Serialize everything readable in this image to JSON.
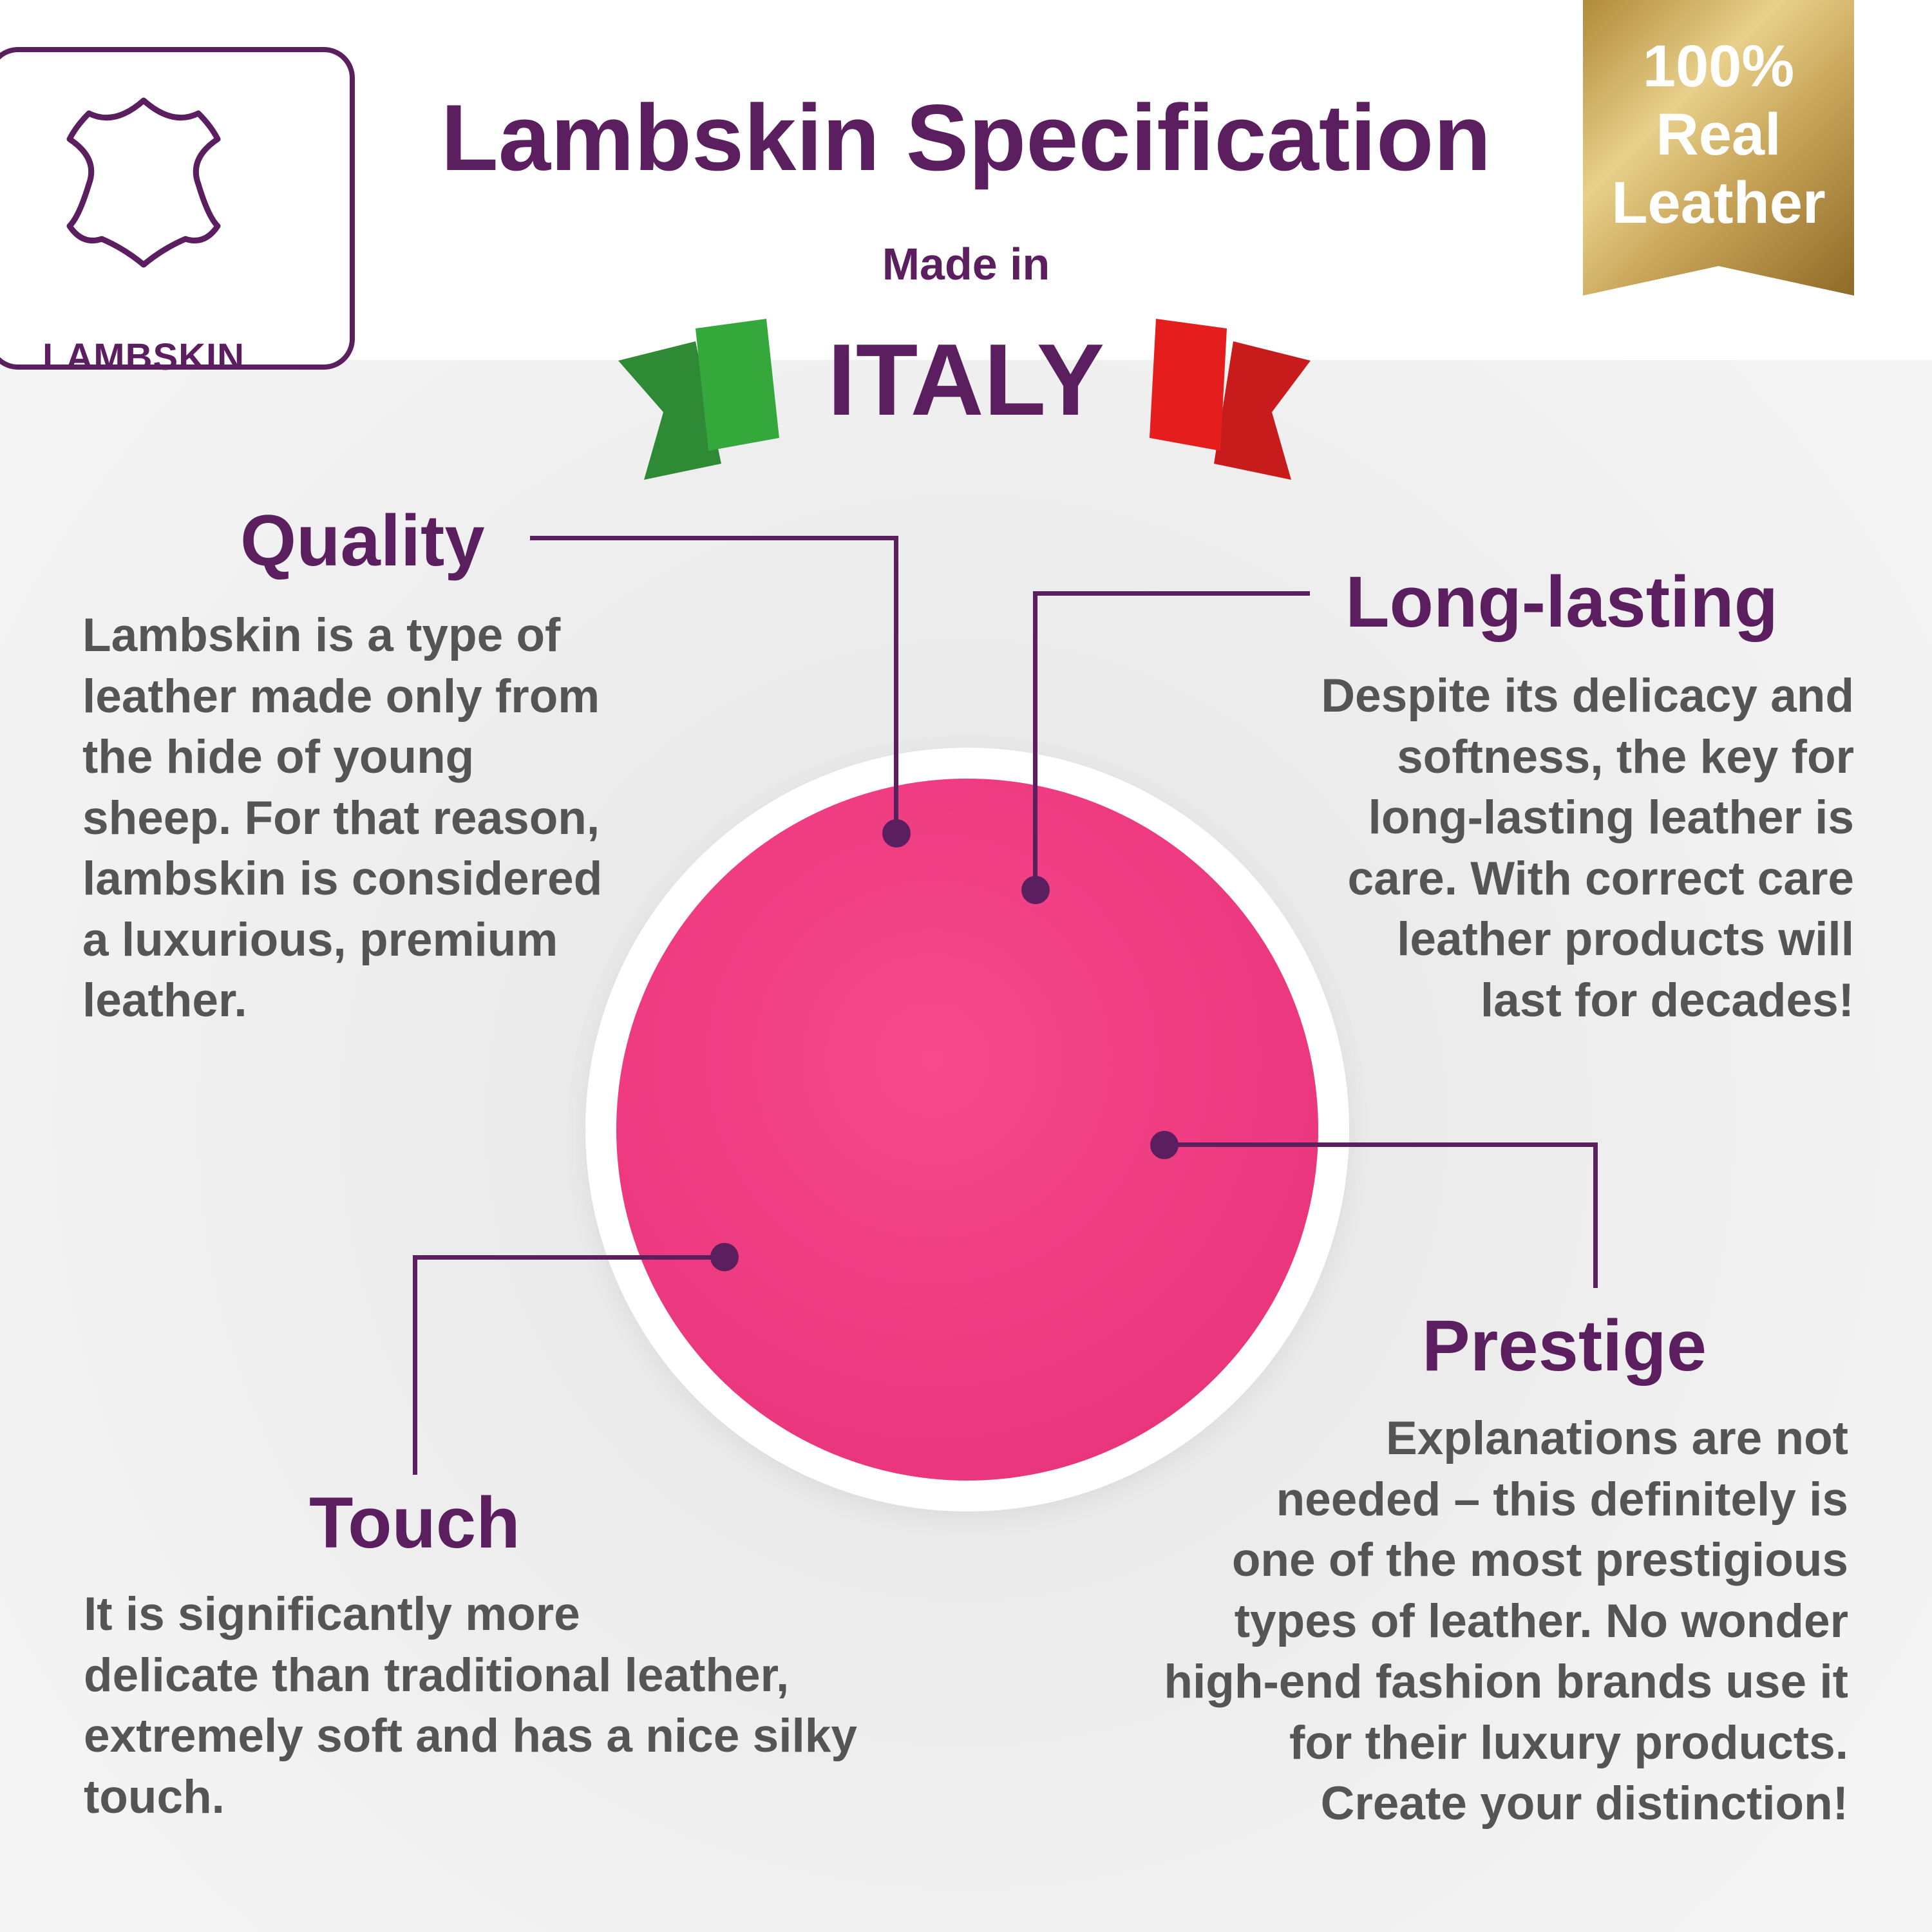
{
  "logo": {
    "label": "LAMBSKIN",
    "icon": "leather-hide-icon"
  },
  "header": {
    "title": "Lambskin Specification",
    "made_in": "Made in",
    "country": "ITALY"
  },
  "badge": {
    "lines": [
      "100%",
      "Real",
      "Leather"
    ]
  },
  "colors": {
    "purple": "#5b1f5f",
    "gold": "#c7a458",
    "pink": "#ee3a80",
    "flag_green": "#2e9a38",
    "flag_red": "#e11b1b"
  },
  "quality": {
    "heading": "Quality",
    "lines": [
      "Lambskin is a type of",
      "leather made only from",
      "the hide of young",
      "sheep. For that reason,",
      "lambskin is considered",
      "a luxurious, premium",
      "leather."
    ]
  },
  "long_lasting": {
    "heading": "Long-lasting",
    "lines": [
      "Despite its delicacy and",
      "softness, the key for",
      "long-lasting leather is",
      "care. With correct care",
      "leather products will",
      "last for decades!"
    ]
  },
  "prestige": {
    "heading": "Prestige",
    "lines": [
      "Explanations are not",
      "needed – this definitely is",
      "one of the most prestigious",
      "types of leather. No wonder",
      "high-end fashion brands use it",
      "for their luxury products.",
      "Create your distinction!"
    ]
  },
  "touch": {
    "heading": "Touch",
    "lines": [
      "It is significantly more",
      "delicate than traditional leather,",
      "extremely soft and has a nice silky",
      "touch."
    ]
  }
}
